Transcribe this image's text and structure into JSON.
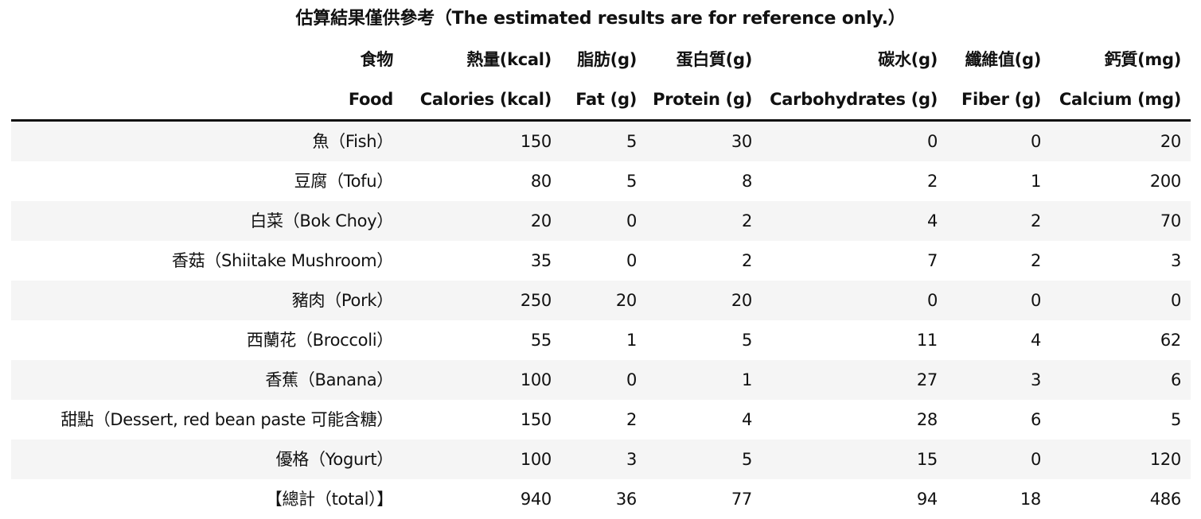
{
  "caption": "估算結果僅供參考（The estimated results are for reference only.）",
  "header_zh": [
    "食物",
    "熱量(kcal)",
    "脂肪(g)",
    "蛋白質(g)",
    "碳水(g)",
    "纖維值(g)",
    "鈣質(mg)"
  ],
  "header_en": [
    "Food",
    "Calories (kcal)",
    "Fat (g)",
    "Protein (g)",
    "Carbohydrates (g)",
    "Fiber (g)",
    "Calcium (mg)"
  ],
  "rows": [
    [
      "魚（Fish）",
      "150",
      "5",
      "30",
      "0",
      "0",
      "20"
    ],
    [
      "豆腐（Tofu）",
      "80",
      "5",
      "8",
      "2",
      "1",
      "200"
    ],
    [
      "白菜（Bok Choy）",
      "20",
      "0",
      "2",
      "4",
      "2",
      "70"
    ],
    [
      "香菇（Shiitake Mushroom）",
      "35",
      "0",
      "2",
      "7",
      "2",
      "3"
    ],
    [
      "豬肉（Pork）",
      "250",
      "20",
      "20",
      "0",
      "0",
      "0"
    ],
    [
      "西蘭花（Broccoli）",
      "55",
      "1",
      "5",
      "11",
      "4",
      "62"
    ],
    [
      "香蕉（Banana）",
      "100",
      "0",
      "1",
      "27",
      "3",
      "6"
    ],
    [
      "甜點（Dessert, red bean paste 可能含糖）",
      "150",
      "2",
      "4",
      "28",
      "6",
      "5"
    ],
    [
      "優格（Yogurt）",
      "100",
      "3",
      "5",
      "15",
      "0",
      "120"
    ],
    [
      "【總計（total）】",
      "940",
      "36",
      "77",
      "94",
      "18",
      "486"
    ]
  ]
}
